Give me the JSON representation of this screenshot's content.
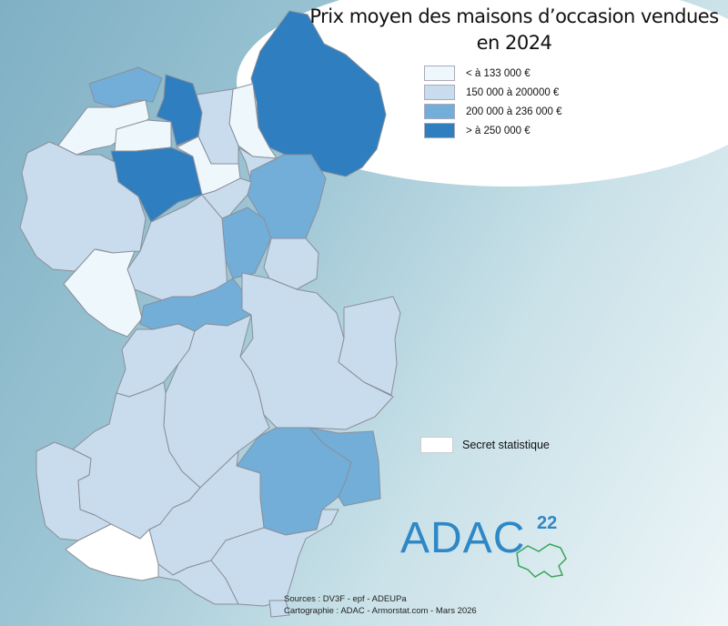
{
  "title": {
    "line1": "Prix moyen des maisons d’occasion vendues",
    "line2": "en 2024"
  },
  "legend": [
    {
      "label": "< à 133 000 €",
      "color": "#eef7fb"
    },
    {
      "label": "150 000 à 200000 €",
      "color": "#c8dcee"
    },
    {
      "label": "200 000 à 236 000 €",
      "color": "#72aed8"
    },
    {
      "label": "> à 250 000 €",
      "color": "#2f7ec0"
    }
  ],
  "secret": {
    "label": "Secret statistique",
    "color": "#ffffff"
  },
  "logo": {
    "text": "ADAC",
    "number": "22"
  },
  "sources": {
    "line1": "Sources : DV3F - epf - ADEUPa",
    "line2": "Cartographie : ADAC - Armorstat.com - Mars 2026"
  },
  "map": {
    "region_classes": [
      "c4",
      "c1",
      "c3",
      "c4",
      "c1",
      "c2",
      "c1",
      "c4",
      "c2",
      "c0",
      "c2",
      "c3",
      "c2",
      "c3",
      "c2",
      "c2",
      "c0",
      "c3",
      "c2",
      "c2",
      "c2",
      "c2",
      "c3",
      "c3",
      "c2",
      "c2",
      "c2",
      "c2",
      "c_secret",
      "c2",
      "c2"
    ]
  }
}
